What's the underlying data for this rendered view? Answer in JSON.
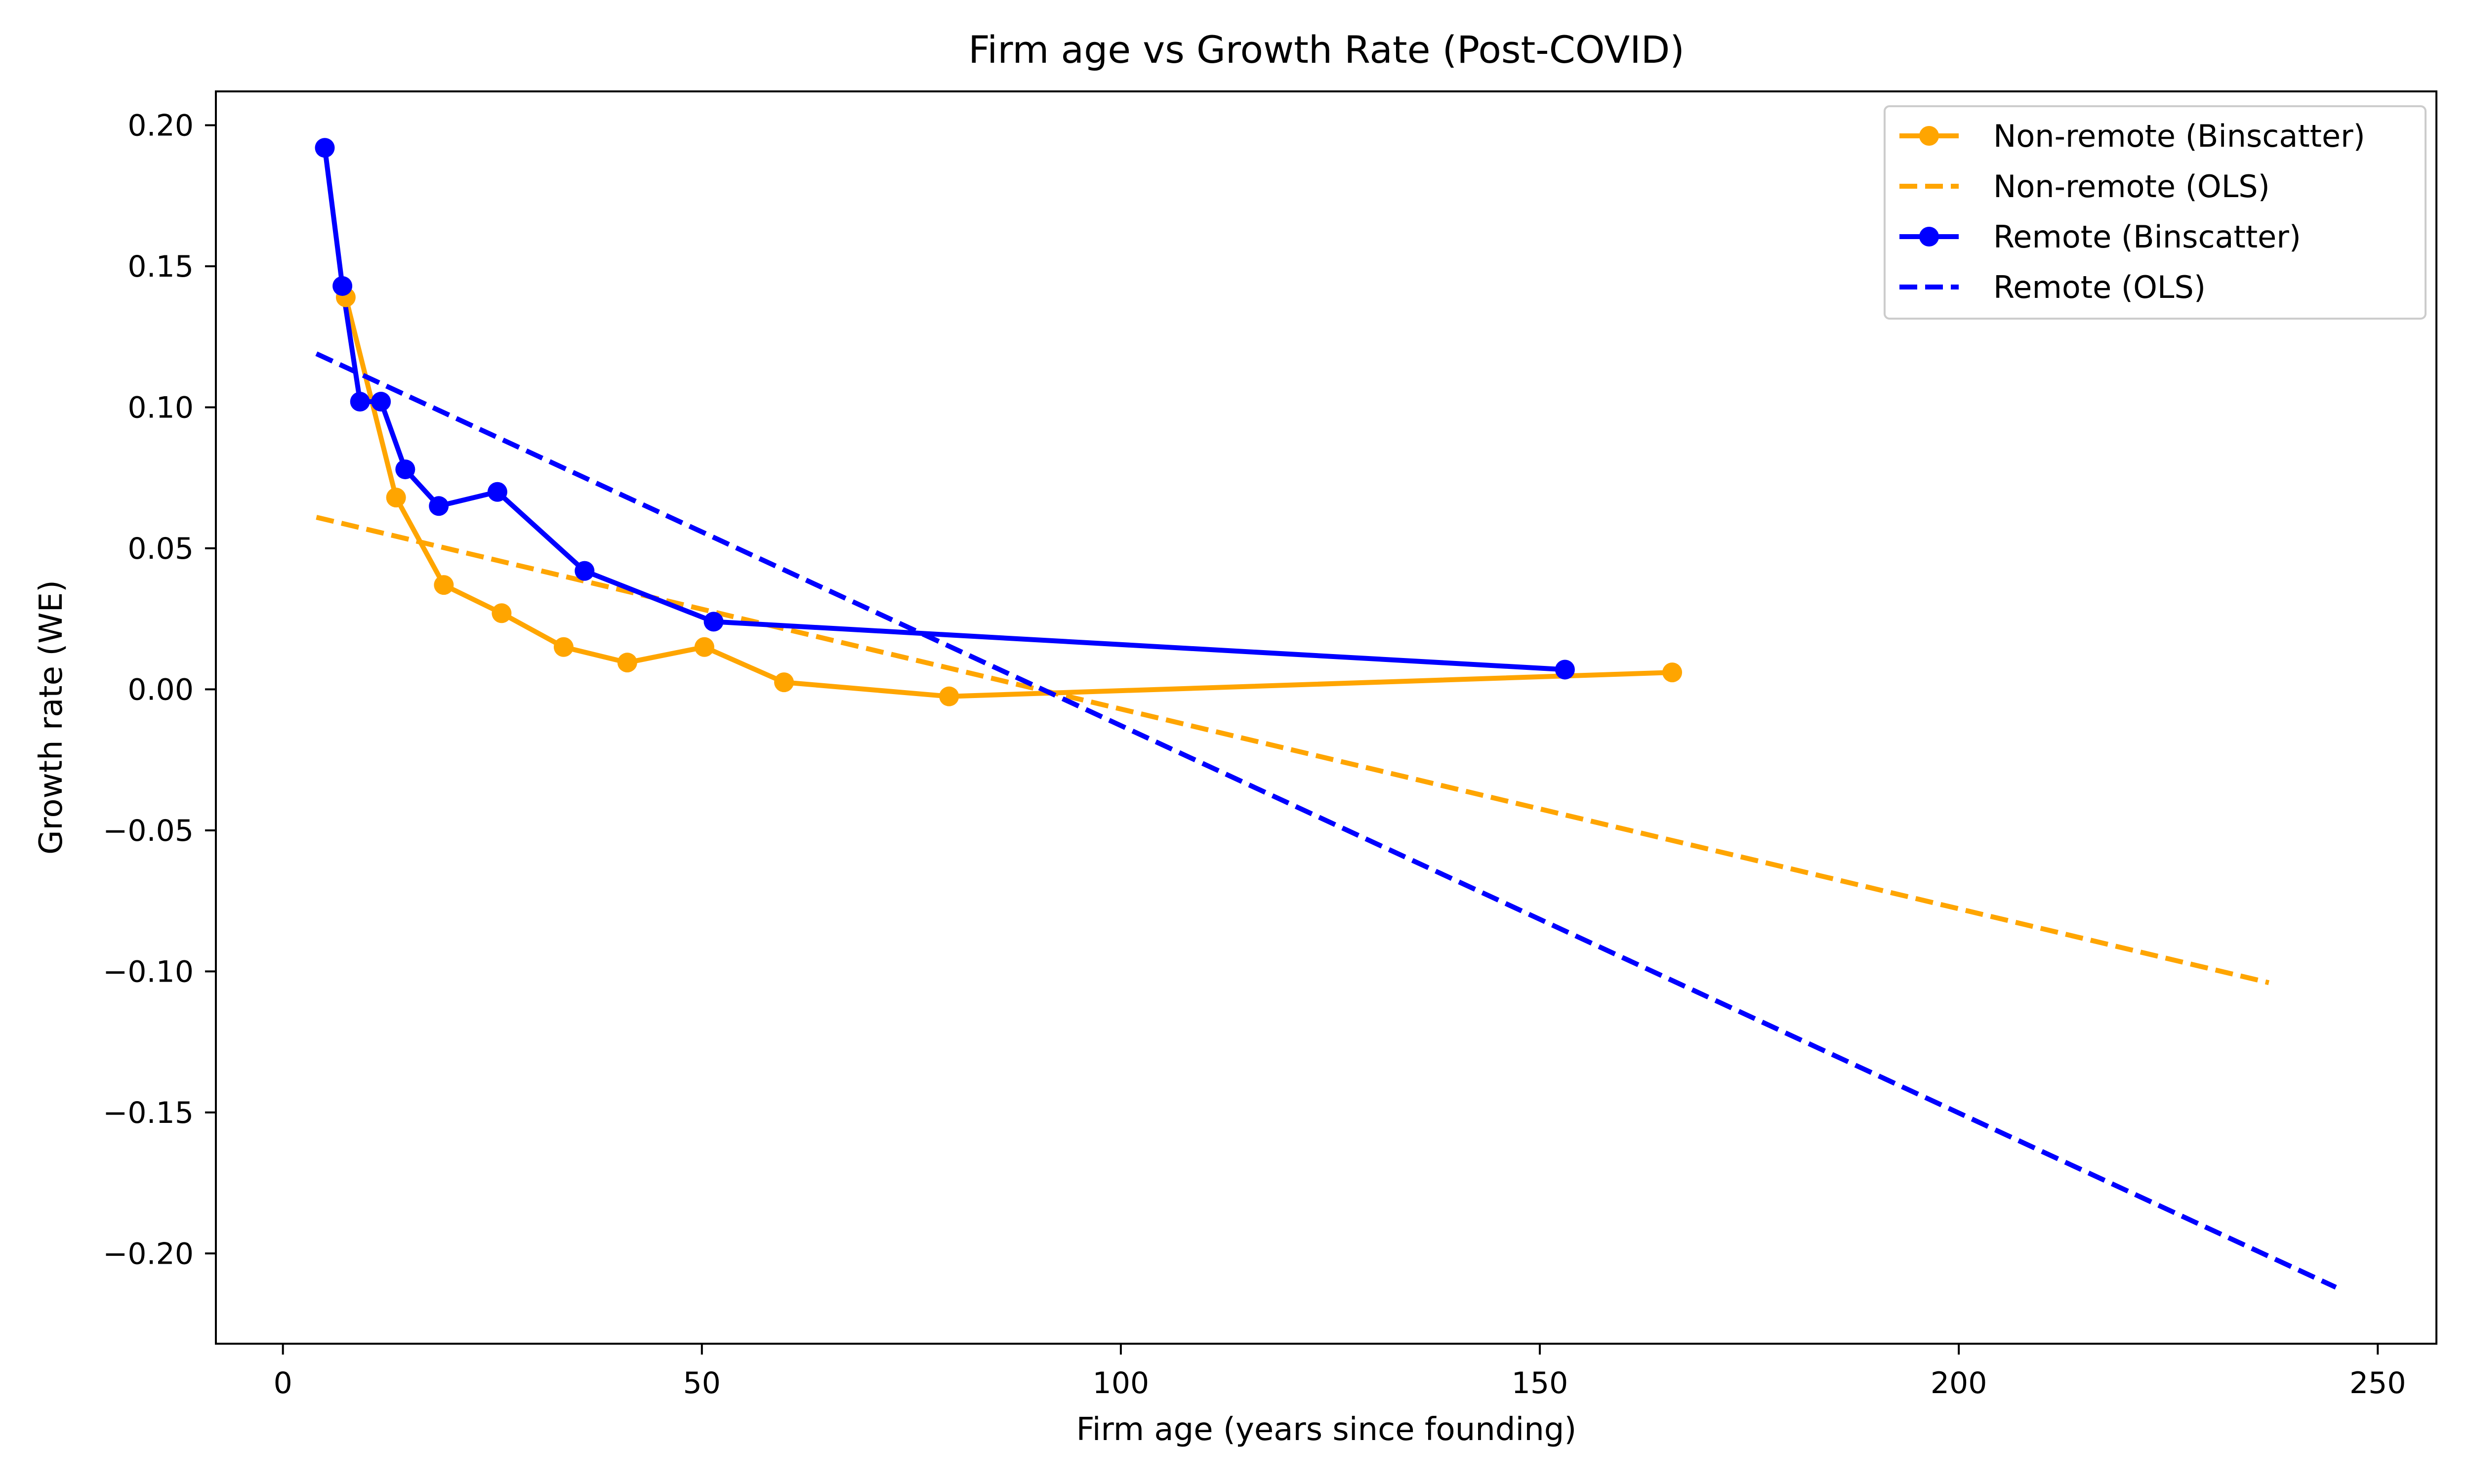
{
  "chart_data": {
    "type": "line",
    "title": "Firm age vs Growth Rate (Post-COVID)",
    "xlabel": "Firm age (years since founding)",
    "ylabel": "Growth rate (WE)",
    "xlim": [
      -8,
      257
    ],
    "ylim": [
      -0.232,
      0.212
    ],
    "xticks": [
      0,
      50,
      100,
      150,
      200,
      250
    ],
    "xtick_labels": [
      "0",
      "50",
      "100",
      "150",
      "200",
      "250"
    ],
    "yticks": [
      0.2,
      0.15,
      0.1,
      0.05,
      0.0,
      -0.05,
      -0.1,
      -0.15,
      -0.2
    ],
    "ytick_labels": [
      "0.20",
      "0.15",
      "0.10",
      "0.05",
      "0.00",
      "−0.05",
      "−0.10",
      "−0.15",
      "−0.20"
    ],
    "grid": false,
    "legend_position": "top-right",
    "series": [
      {
        "name": "Non-remote (Binscatter)",
        "color": "#FFA500",
        "style": "solid",
        "marker": "circle",
        "x": [
          7.5,
          13.5,
          19.2,
          26.1,
          33.5,
          41.1,
          50.3,
          59.8,
          79.5,
          165.8
        ],
        "y": [
          0.139,
          0.068,
          0.037,
          0.027,
          0.015,
          0.0095,
          0.015,
          0.0025,
          -0.0025,
          0.006
        ]
      },
      {
        "name": "Non-remote (OLS)",
        "color": "#FFA500",
        "style": "dashed",
        "marker": "none",
        "x": [
          4,
          237
        ],
        "y": [
          0.061,
          -0.104
        ]
      },
      {
        "name": "Remote (Binscatter)",
        "color": "#0000FF",
        "style": "solid",
        "marker": "circle",
        "x": [
          5.0,
          7.1,
          9.2,
          11.7,
          14.6,
          18.6,
          25.6,
          36.0,
          51.4,
          153.0
        ],
        "y": [
          0.192,
          0.143,
          0.102,
          0.102,
          0.078,
          0.065,
          0.07,
          0.042,
          0.024,
          0.007
        ]
      },
      {
        "name": "Remote (OLS)",
        "color": "#0000FF",
        "style": "dashed",
        "marker": "none",
        "x": [
          4,
          245
        ],
        "y": [
          0.119,
          -0.212
        ]
      }
    ]
  }
}
